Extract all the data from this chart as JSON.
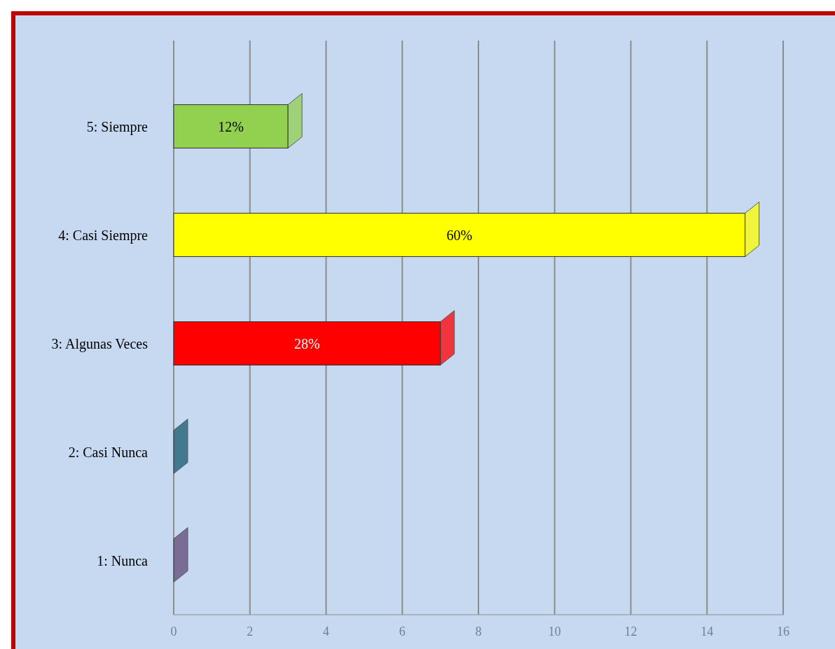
{
  "chart_data": {
    "type": "bar",
    "orientation": "horizontal",
    "categories": [
      "5: Siempre",
      "4: Casi Siempre",
      "3: Algunas Veces",
      "2: Casi Nunca",
      "1: Nunca"
    ],
    "values": [
      3,
      15,
      7,
      0,
      0
    ],
    "colors": [
      "#92d050",
      "#ffff00",
      "#ff0000",
      "#17596e",
      "#604a7b"
    ],
    "annotations": [
      "12%",
      "60%",
      "28%"
    ],
    "xlim": [
      0,
      16
    ],
    "xticks": [
      0,
      2,
      4,
      6,
      8,
      10,
      12,
      14,
      16
    ],
    "grid": "x"
  }
}
